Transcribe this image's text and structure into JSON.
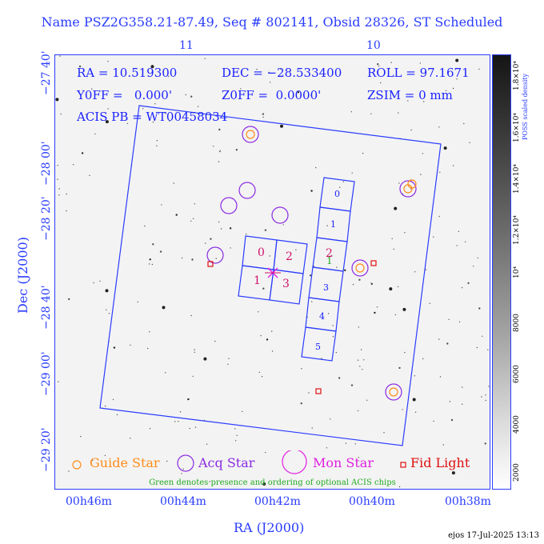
{
  "title": "Name PSZ2G358.21-87.49, Seq # 802141, Obsid 28326, ST Scheduled",
  "top_axis": [
    "11",
    "10"
  ],
  "info": {
    "ra": "RA = 10.519300",
    "dec": "DEC = −28.533400",
    "roll": "ROLL = 97.1671",
    "yoff": "Y0FF =   0.000'",
    "zoff": "Z0FF =  0.0000'",
    "zsim": "ZSIM = 0 mm",
    "acis": "ACIS PB = WT00458034"
  },
  "y_ticks": [
    "−27 40'",
    "−28 00'",
    "−28 20'",
    "−28 40'",
    "−29 00'",
    "−29 20'"
  ],
  "x_ticks": [
    "00h46m",
    "00h44m",
    "00h42m",
    "00h40m",
    "00h38m"
  ],
  "y_label": "Dec (J2000)",
  "x_label": "RA (J2000)",
  "colorbar": {
    "label": "POSS scaled density",
    "ticks": [
      "2000",
      "4000",
      "6000",
      "8000",
      "10⁴",
      "1.2×10⁴",
      "1.4×10⁴",
      "1.6×10⁴",
      "1.8×10⁴"
    ]
  },
  "chips_i": [
    "0",
    "2",
    "1",
    "3"
  ],
  "chips_s": [
    "0",
    "1",
    "2",
    "3",
    "4",
    "5"
  ],
  "optional_chip": "1",
  "legend": {
    "guide": "Guide Star",
    "acq": "Acq Star",
    "mon": "Mon Star",
    "fid": "Fid Light",
    "note": "Green denotes presence and ordering of optional ACIS chips"
  },
  "colors": {
    "axis": "#2a3cff",
    "guide": "#ff8c1a",
    "acq": "#8a2be2",
    "mon": "#e020e0",
    "fid": "#e01010",
    "green": "#22aa22",
    "chip_label": "#d0106a"
  },
  "footer": "ejos 17-Jul-2025 13:13"
}
